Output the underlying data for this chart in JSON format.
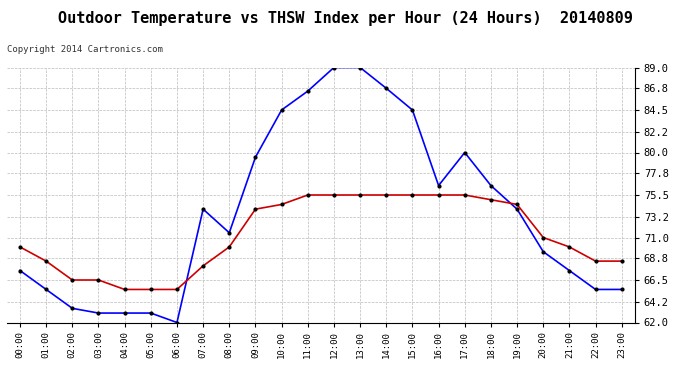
{
  "title": "Outdoor Temperature vs THSW Index per Hour (24 Hours)  20140809",
  "copyright": "Copyright 2014 Cartronics.com",
  "hours": [
    "00:00",
    "01:00",
    "02:00",
    "03:00",
    "04:00",
    "05:00",
    "06:00",
    "07:00",
    "08:00",
    "09:00",
    "10:00",
    "11:00",
    "12:00",
    "13:00",
    "14:00",
    "15:00",
    "16:00",
    "17:00",
    "18:00",
    "19:00",
    "20:00",
    "21:00",
    "22:00",
    "23:00"
  ],
  "thsw": [
    67.5,
    65.5,
    63.5,
    63.0,
    63.0,
    63.0,
    62.0,
    74.0,
    71.5,
    79.5,
    84.5,
    86.5,
    89.0,
    89.0,
    86.8,
    84.5,
    76.5,
    80.0,
    76.5,
    74.0,
    69.5,
    67.5,
    65.5,
    65.5
  ],
  "temperature": [
    70.0,
    68.5,
    66.5,
    66.5,
    65.5,
    65.5,
    65.5,
    68.0,
    70.0,
    74.0,
    74.5,
    75.5,
    75.5,
    75.5,
    75.5,
    75.5,
    75.5,
    75.5,
    75.0,
    74.5,
    71.0,
    70.0,
    68.5,
    68.5
  ],
  "ylim": [
    62.0,
    89.0
  ],
  "yticks": [
    62.0,
    64.2,
    66.5,
    68.8,
    71.0,
    73.2,
    75.5,
    77.8,
    80.0,
    82.2,
    84.5,
    86.8,
    89.0
  ],
  "thsw_color": "#0000ff",
  "temp_color": "#cc0000",
  "marker_color": "#000000",
  "background_color": "#ffffff",
  "grid_color": "#bbbbbb",
  "title_fontsize": 11,
  "legend_thsw_bg": "#0000cc",
  "legend_temp_bg": "#cc0000"
}
